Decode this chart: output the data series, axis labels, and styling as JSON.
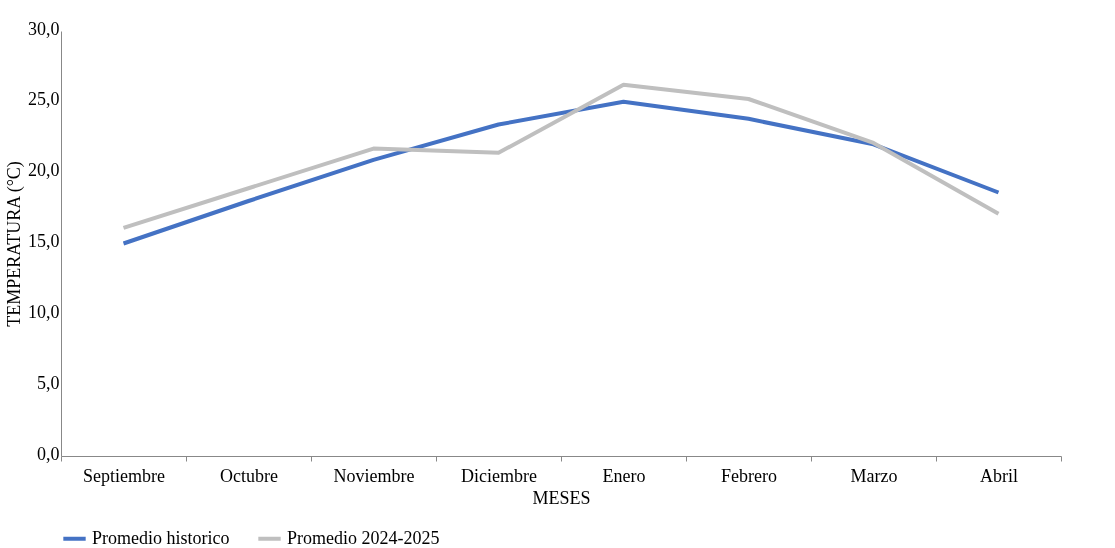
{
  "chart_data": {
    "type": "line",
    "xlabel": "MESES",
    "ylabel": "TEMPERATURA (°C)",
    "categories": [
      "Septiembre",
      "Octubre",
      "Noviembre",
      "Diciembre",
      "Enero",
      "Febrero",
      "Marzo",
      "Abril"
    ],
    "series": [
      {
        "name": "Promedio historico",
        "color": "#4472c4",
        "values": [
          15.0,
          18.0,
          20.9,
          23.4,
          25.0,
          23.8,
          22.0,
          18.6
        ]
      },
      {
        "name": "Promedio 2024-2025",
        "color": "#bfbfbf",
        "values": [
          16.1,
          18.9,
          21.7,
          21.4,
          26.2,
          25.2,
          22.1,
          17.1
        ]
      }
    ],
    "ylim": [
      0,
      30
    ],
    "yticks": [
      {
        "value": 0,
        "label": "0,0"
      },
      {
        "value": 5,
        "label": "5,0"
      },
      {
        "value": 10,
        "label": "10,0"
      },
      {
        "value": 15,
        "label": "15,0"
      },
      {
        "value": 20,
        "label": "20,0"
      },
      {
        "value": 25,
        "label": "25,0"
      },
      {
        "value": 30,
        "label": "30,0"
      }
    ],
    "grid": false,
    "legend": "bottom",
    "marker": "none",
    "line_style": "solid"
  }
}
